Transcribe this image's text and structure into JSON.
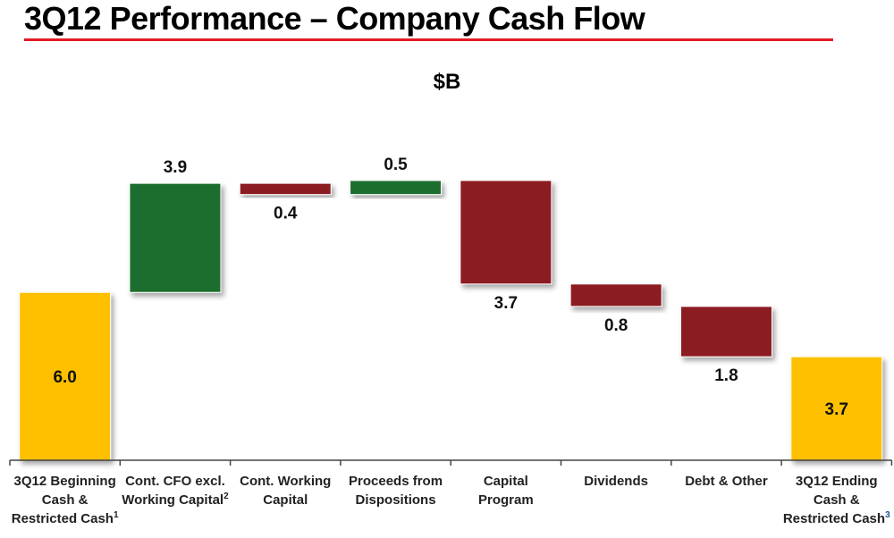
{
  "title": "3Q12 Performance – Company Cash Flow",
  "colors": {
    "title_rule": "#e31b23",
    "total": "#ffc000",
    "increase": "#1e6e2e",
    "decrease": "#8b1a22"
  },
  "chart_data": {
    "type": "bar",
    "subtype": "waterfall",
    "title": "3Q12 Performance – Company Cash Flow",
    "subtitle": "$B",
    "ylabel": "$B",
    "xlabel": "",
    "ylim": [
      0,
      10.5
    ],
    "grid": false,
    "legend": "none",
    "categories": [
      {
        "label": "3Q12 Beginning\nCash &\nRestricted Cash",
        "footnote": "1"
      },
      {
        "label": "Cont. CFO excl.\nWorking Capital",
        "footnote": "2"
      },
      {
        "label": "Cont.  Working\nCapital",
        "footnote": ""
      },
      {
        "label": "Proceeds from\nDispositions",
        "footnote": ""
      },
      {
        "label": "Capital\nProgram",
        "footnote": ""
      },
      {
        "label": "Dividends",
        "footnote": ""
      },
      {
        "label": "Debt &    Other",
        "footnote": ""
      },
      {
        "label": "3Q12 Ending\nCash &\nRestricted Cash",
        "footnote": "3"
      }
    ],
    "bars": [
      {
        "kind": "total",
        "value": 6.0,
        "label": "6.0"
      },
      {
        "kind": "increase",
        "value": 3.9,
        "label": "3.9"
      },
      {
        "kind": "decrease",
        "value": -0.4,
        "label": "0.4"
      },
      {
        "kind": "increase",
        "value": 0.5,
        "label": "0.5"
      },
      {
        "kind": "decrease",
        "value": -3.7,
        "label": "3.7"
      },
      {
        "kind": "decrease",
        "value": -0.8,
        "label": "0.8"
      },
      {
        "kind": "decrease",
        "value": -1.8,
        "label": "1.8"
      },
      {
        "kind": "total",
        "value": 3.7,
        "label": "3.7"
      }
    ]
  }
}
